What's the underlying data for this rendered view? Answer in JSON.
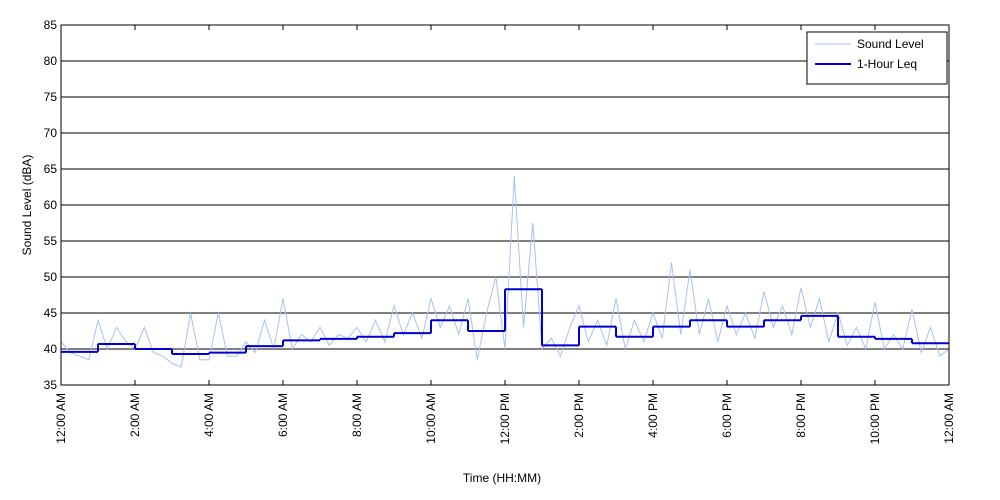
{
  "chart_data": {
    "type": "line",
    "xlabel": "Time (HH:MM)",
    "ylabel": "Sound Level (dBA)",
    "xlim": [
      0,
      24
    ],
    "ylim": [
      35,
      85
    ],
    "yticks": [
      35,
      40,
      45,
      50,
      55,
      60,
      65,
      70,
      75,
      80,
      85
    ],
    "xticks": [
      {
        "value": 0,
        "label": "12:00 AM"
      },
      {
        "value": 2,
        "label": "2:00 AM"
      },
      {
        "value": 4,
        "label": "4:00 AM"
      },
      {
        "value": 6,
        "label": "6:00 AM"
      },
      {
        "value": 8,
        "label": "8:00 AM"
      },
      {
        "value": 10,
        "label": "10:00 AM"
      },
      {
        "value": 12,
        "label": "12:00 PM"
      },
      {
        "value": 14,
        "label": "2:00 PM"
      },
      {
        "value": 16,
        "label": "4:00 PM"
      },
      {
        "value": 18,
        "label": "6:00 PM"
      },
      {
        "value": 20,
        "label": "8:00 PM"
      },
      {
        "value": 22,
        "label": "10:00 PM"
      },
      {
        "value": 24,
        "label": "12:00 AM"
      }
    ],
    "grid": true,
    "legend": "upper right",
    "series": [
      {
        "name": "Sound Level",
        "color": "#a9c0f2",
        "style": "line",
        "x": [
          0,
          0.25,
          0.5,
          0.75,
          1,
          1.25,
          1.5,
          1.75,
          2,
          2.25,
          2.5,
          2.75,
          3,
          3.25,
          3.5,
          3.75,
          4,
          4.25,
          4.5,
          4.75,
          5,
          5.25,
          5.5,
          5.75,
          6,
          6.25,
          6.5,
          6.75,
          7,
          7.25,
          7.5,
          7.75,
          8,
          8.25,
          8.5,
          8.75,
          9,
          9.25,
          9.5,
          9.75,
          10,
          10.25,
          10.5,
          10.75,
          11,
          11.25,
          11.5,
          11.75,
          12,
          12.25,
          12.5,
          12.75,
          13,
          13.25,
          13.5,
          13.75,
          14,
          14.25,
          14.5,
          14.75,
          15,
          15.25,
          15.5,
          15.75,
          16,
          16.25,
          16.5,
          16.75,
          17,
          17.25,
          17.5,
          17.75,
          18,
          18.25,
          18.5,
          18.75,
          19,
          19.25,
          19.5,
          19.75,
          20,
          20.25,
          20.5,
          20.75,
          21,
          21.25,
          21.5,
          21.75,
          22,
          22.25,
          22.5,
          22.75,
          23,
          23.25,
          23.5,
          23.75,
          24
        ],
        "values": [
          41,
          39.5,
          39,
          38.5,
          44,
          40,
          43,
          41,
          40,
          43,
          39.5,
          39,
          38,
          37.5,
          45,
          38.5,
          38.5,
          45,
          39,
          39,
          41,
          39.5,
          44,
          40,
          47,
          40,
          42,
          41,
          43,
          40.5,
          42,
          41.5,
          43,
          41,
          44,
          41,
          46,
          42,
          45,
          41.5,
          47,
          43,
          46,
          42,
          47,
          38.5,
          45,
          50,
          40,
          64,
          43,
          57.5,
          40,
          41.5,
          39,
          43,
          46,
          41,
          44,
          40.5,
          47,
          40,
          44,
          41,
          45,
          41.5,
          52,
          42,
          51,
          42,
          47,
          41,
          46,
          42,
          45,
          41.5,
          48,
          43,
          46,
          42,
          48.5,
          43,
          47,
          41,
          45,
          40.5,
          43,
          40,
          46.5,
          40,
          42,
          40,
          45.5,
          39.5,
          43,
          39,
          40
        ]
      },
      {
        "name": "1-Hour Leq",
        "color": "#0000d0",
        "style": "step",
        "x": [
          0,
          1,
          2,
          3,
          4,
          5,
          6,
          7,
          8,
          9,
          10,
          11,
          12,
          13,
          14,
          15,
          16,
          17,
          18,
          19,
          20,
          21,
          22,
          23
        ],
        "values": [
          39.6,
          40.7,
          40.0,
          39.3,
          39.5,
          40.4,
          41.2,
          41.4,
          41.7,
          42.2,
          44.0,
          42.5,
          48.3,
          40.5,
          43.1,
          41.7,
          43.1,
          44.0,
          43.1,
          44.0,
          44.6,
          41.7,
          41.4,
          40.8
        ]
      }
    ]
  }
}
